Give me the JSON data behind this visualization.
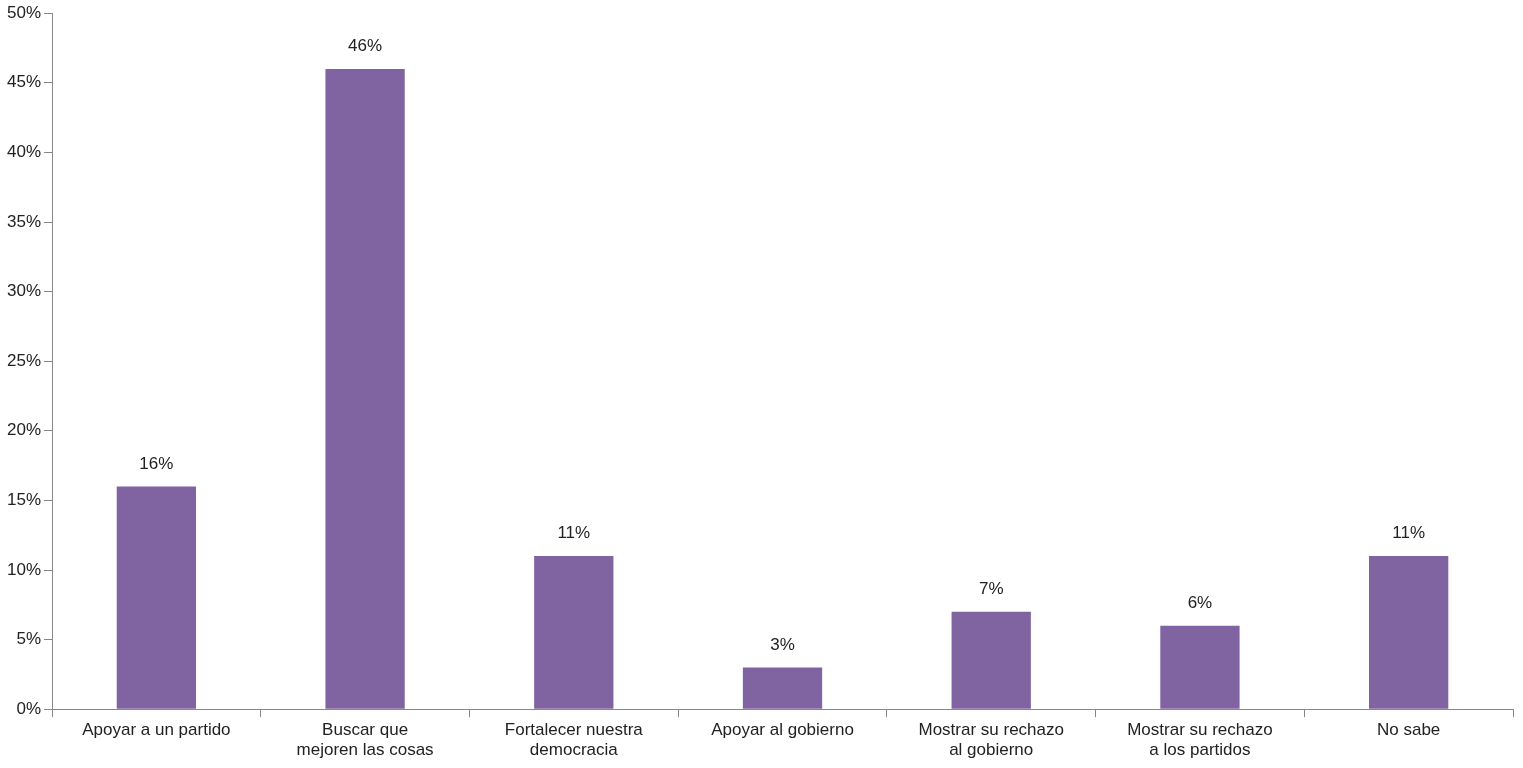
{
  "chart_data": {
    "type": "bar",
    "categories": [
      "Apoyar a un partido",
      "Buscar que mejoren las cosas",
      "Fortalecer nuestra democracia",
      "Apoyar al gobierno",
      "Mostrar su rechazo al gobierno",
      "Mostrar su rechazo a los partidos",
      "No sabe"
    ],
    "values": [
      16,
      46,
      11,
      3,
      7,
      6,
      11
    ],
    "value_labels": [
      "16%",
      "46%",
      "11%",
      "3%",
      "7%",
      "6%",
      "11%"
    ],
    "color": "#8064a2",
    "ylim": [
      0,
      50
    ],
    "yticks": [
      {
        "value": 0,
        "label": "0%"
      },
      {
        "value": 5,
        "label": "5%"
      },
      {
        "value": 10,
        "label": "10%"
      },
      {
        "value": 15,
        "label": "15%"
      },
      {
        "value": 20,
        "label": "20%"
      },
      {
        "value": 25,
        "label": "25%"
      },
      {
        "value": 30,
        "label": "30%"
      },
      {
        "value": 35,
        "label": "35%"
      },
      {
        "value": 40,
        "label": "40%"
      },
      {
        "value": 45,
        "label": "45%"
      },
      {
        "value": 50,
        "label": "50%"
      }
    ],
    "grid": false,
    "legend": false
  }
}
